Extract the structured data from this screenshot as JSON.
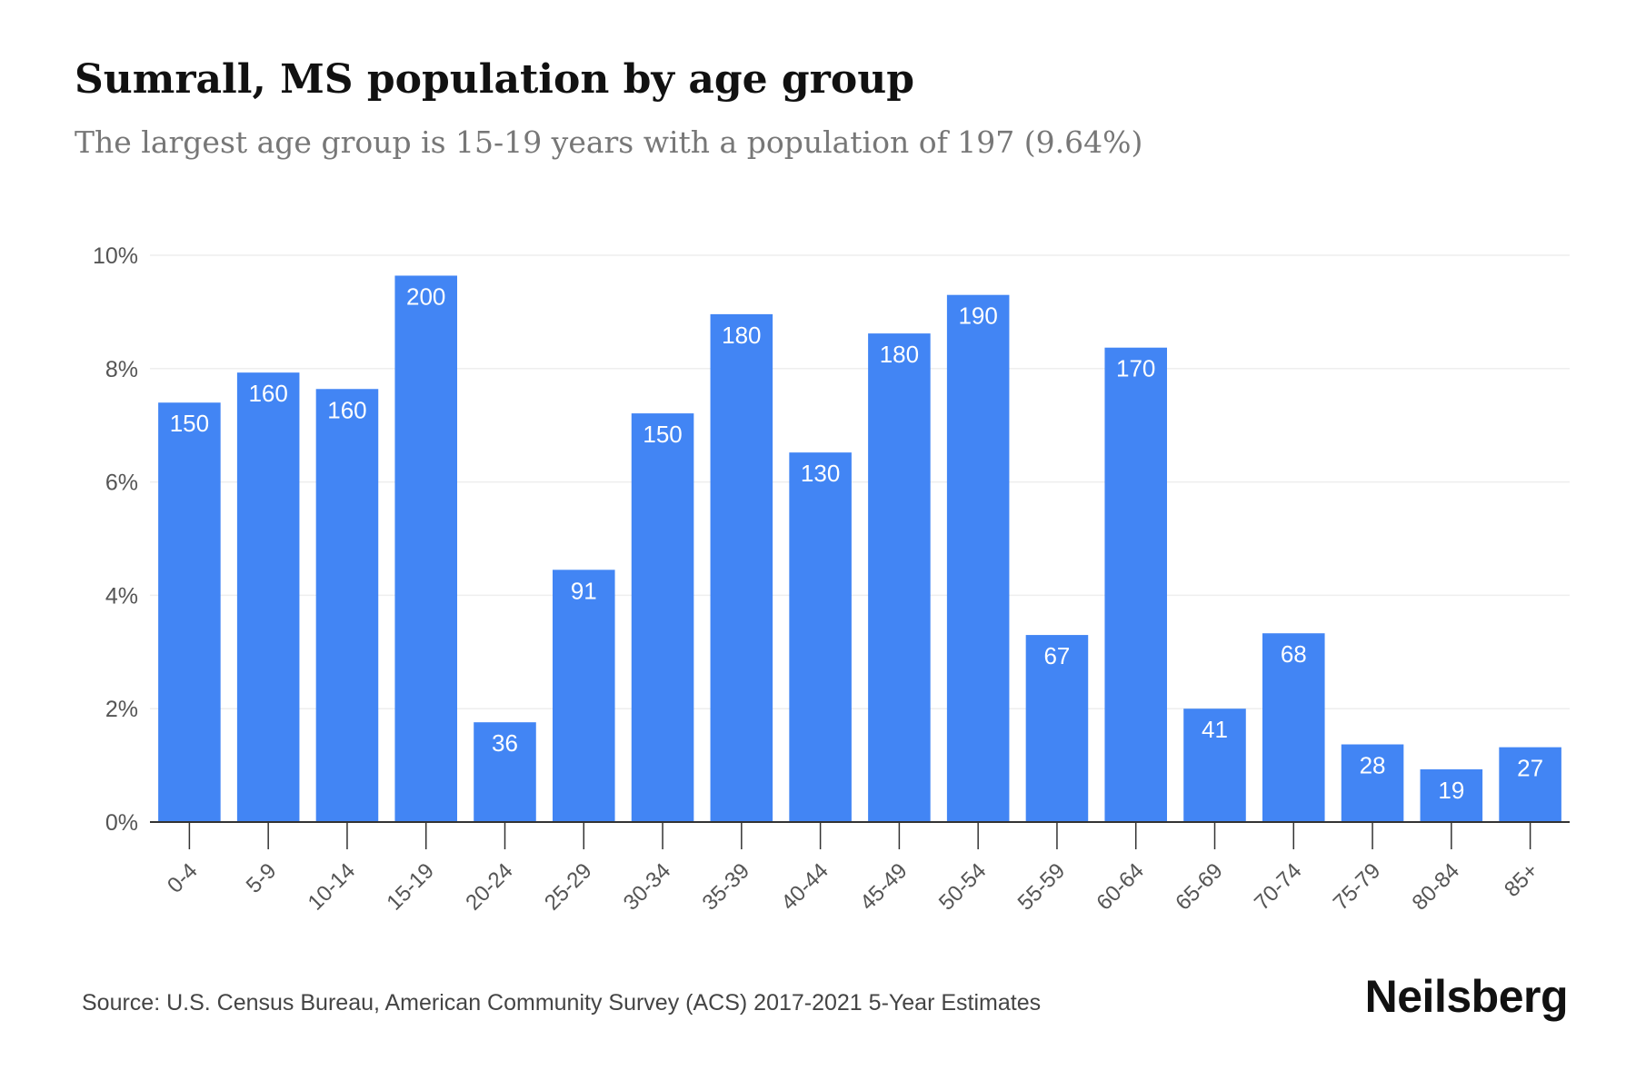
{
  "header": {
    "title": "Sumrall, MS population by age group",
    "subtitle": "The largest age group is 15-19 years with a population of 197 (9.64%)"
  },
  "footer": {
    "source": "Source: U.S. Census Bureau, American Community Survey (ACS) 2017-2021 5-Year Estimates",
    "brand": "Neilsberg"
  },
  "colors": {
    "bar": "#4285f4",
    "bar_label": "#ffffff",
    "grid": "#eeeeee",
    "axis": "#333333",
    "tick_text": "#555555"
  },
  "chart_data": {
    "type": "bar",
    "categories": [
      "0-4",
      "5-9",
      "10-14",
      "15-19",
      "20-24",
      "25-29",
      "30-34",
      "35-39",
      "40-44",
      "45-49",
      "50-54",
      "55-59",
      "60-64",
      "65-69",
      "70-74",
      "75-79",
      "80-84",
      "85+"
    ],
    "series": [
      {
        "values": [
          7.4,
          7.93,
          7.64,
          9.64,
          1.76,
          4.45,
          7.21,
          8.96,
          6.52,
          8.62,
          9.3,
          3.3,
          8.37,
          2.0,
          3.33,
          1.37,
          0.93,
          1.32
        ],
        "labels": [
          "150",
          "160",
          "160",
          "200",
          "36",
          "91",
          "150",
          "180",
          "130",
          "180",
          "190",
          "67",
          "170",
          "41",
          "68",
          "28",
          "19",
          "27"
        ]
      }
    ],
    "ylim": [
      0,
      10
    ],
    "yticks": [
      0,
      2,
      4,
      6,
      8,
      10
    ],
    "ytick_labels": [
      "0%",
      "2%",
      "4%",
      "6%",
      "8%",
      "10%"
    ],
    "xlabel": "",
    "ylabel": "",
    "grid": true,
    "legend": "none"
  }
}
